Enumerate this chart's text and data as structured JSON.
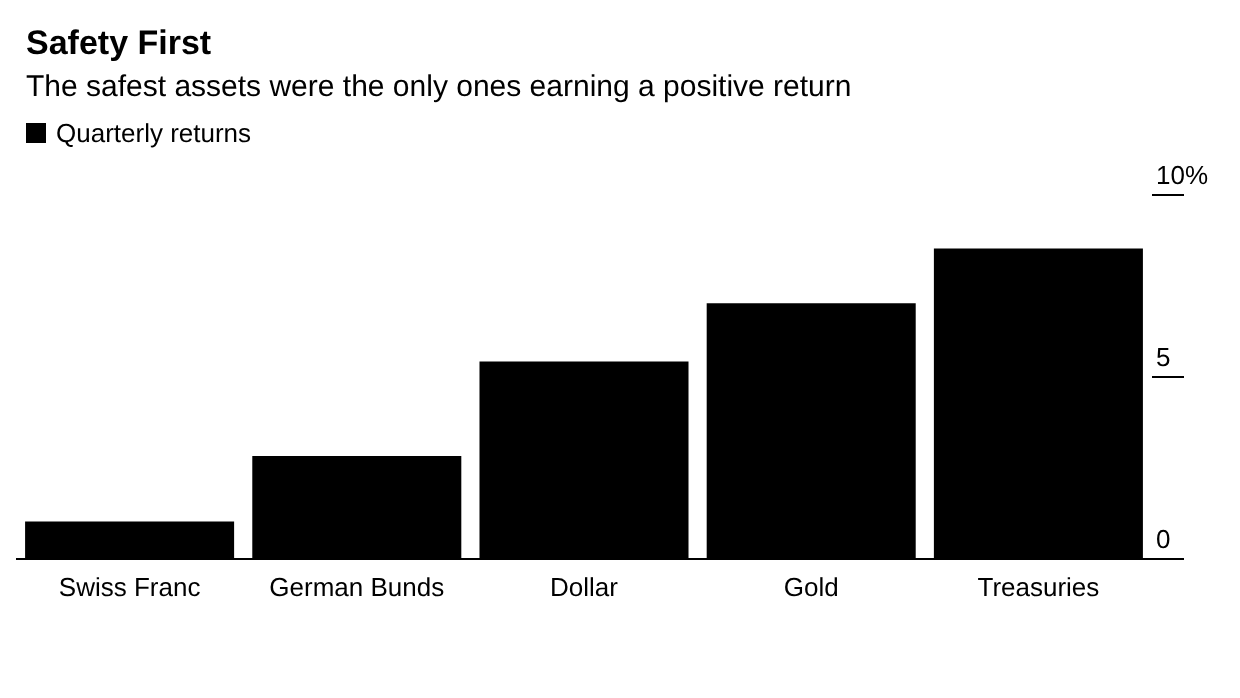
{
  "chart_data": {
    "type": "bar",
    "title": "Safety First",
    "subtitle": "The safest assets were the only ones earning a positive return",
    "categories": [
      "Swiss Franc",
      "German Bunds",
      "Dollar",
      "Gold",
      "Treasuries"
    ],
    "series": [
      {
        "name": "Quarterly returns",
        "color": "#000000",
        "values": [
          1.0,
          2.8,
          5.4,
          7.0,
          8.5
        ]
      }
    ],
    "ylim": [
      0,
      10
    ],
    "yticks": [
      0,
      5,
      {
        "value": 10,
        "label": "10%"
      }
    ],
    "grid": false,
    "legend": "top left"
  }
}
